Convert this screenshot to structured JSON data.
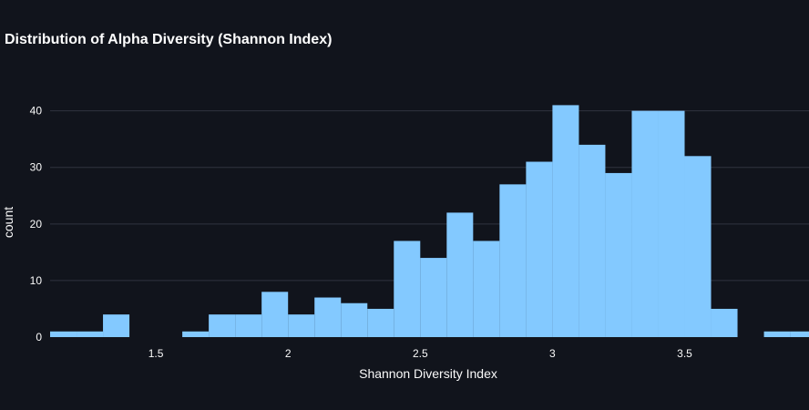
{
  "chart_data": {
    "type": "bar",
    "title": "Distribution of Alpha Diversity (Shannon Index)",
    "xlabel": "Shannon Diversity Index",
    "ylabel": "count",
    "bin_width": 0.1,
    "bins": [
      {
        "x0": 1.1,
        "x1": 1.2,
        "count": 1
      },
      {
        "x0": 1.2,
        "x1": 1.3,
        "count": 1
      },
      {
        "x0": 1.3,
        "x1": 1.4,
        "count": 4
      },
      {
        "x0": 1.4,
        "x1": 1.5,
        "count": 0
      },
      {
        "x0": 1.5,
        "x1": 1.6,
        "count": 0
      },
      {
        "x0": 1.6,
        "x1": 1.7,
        "count": 1
      },
      {
        "x0": 1.7,
        "x1": 1.8,
        "count": 4
      },
      {
        "x0": 1.8,
        "x1": 1.9,
        "count": 4
      },
      {
        "x0": 1.9,
        "x1": 2.0,
        "count": 8
      },
      {
        "x0": 2.0,
        "x1": 2.1,
        "count": 4
      },
      {
        "x0": 2.1,
        "x1": 2.2,
        "count": 7
      },
      {
        "x0": 2.2,
        "x1": 2.3,
        "count": 6
      },
      {
        "x0": 2.3,
        "x1": 2.4,
        "count": 5
      },
      {
        "x0": 2.4,
        "x1": 2.5,
        "count": 17
      },
      {
        "x0": 2.5,
        "x1": 2.6,
        "count": 14
      },
      {
        "x0": 2.6,
        "x1": 2.7,
        "count": 22
      },
      {
        "x0": 2.7,
        "x1": 2.8,
        "count": 17
      },
      {
        "x0": 2.8,
        "x1": 2.9,
        "count": 27
      },
      {
        "x0": 2.9,
        "x1": 3.0,
        "count": 31
      },
      {
        "x0": 3.0,
        "x1": 3.1,
        "count": 41
      },
      {
        "x0": 3.1,
        "x1": 3.2,
        "count": 34
      },
      {
        "x0": 3.2,
        "x1": 3.3,
        "count": 29
      },
      {
        "x0": 3.3,
        "x1": 3.4,
        "count": 40
      },
      {
        "x0": 3.4,
        "x1": 3.5,
        "count": 40
      },
      {
        "x0": 3.5,
        "x1": 3.6,
        "count": 32
      },
      {
        "x0": 3.6,
        "x1": 3.7,
        "count": 5
      },
      {
        "x0": 3.7,
        "x1": 3.8,
        "count": 0
      },
      {
        "x0": 3.8,
        "x1": 3.9,
        "count": 1
      },
      {
        "x0": 3.9,
        "x1": 4.0,
        "count": 1
      }
    ],
    "xlim": [
      1.1,
      3.96
    ],
    "ylim": [
      0,
      43
    ],
    "xticks": [
      1.5,
      2,
      2.5,
      3,
      3.5
    ],
    "xtick_labels": [
      "1.5",
      "2",
      "2.5",
      "3",
      "3.5"
    ],
    "yticks": [
      0,
      10,
      20,
      30,
      40
    ],
    "ytick_labels": [
      "0",
      "10",
      "20",
      "30",
      "40"
    ],
    "grid": true,
    "legend": false,
    "colors": {
      "background": "#11141c",
      "bar": "#83c9ff",
      "grid": "#31333f",
      "text": "#fafafa",
      "title": "#ffffff"
    }
  }
}
